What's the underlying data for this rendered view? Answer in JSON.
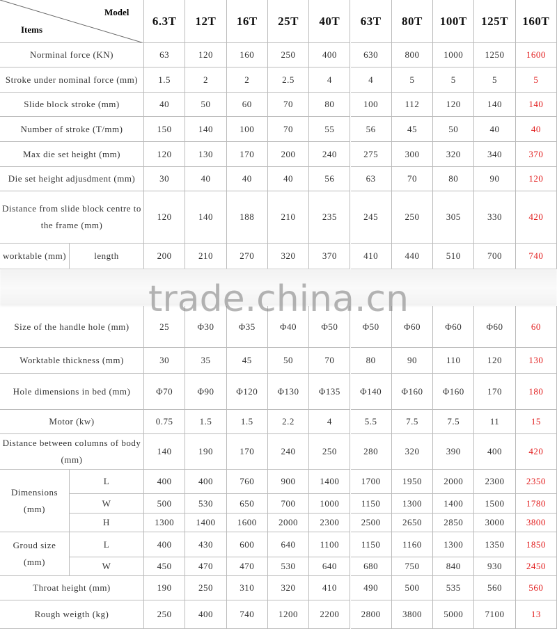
{
  "header": {
    "model": "Model",
    "items": "Items",
    "models": [
      "6.3T",
      "12T",
      "16T",
      "25T",
      "40T",
      "63T",
      "80T",
      "100T",
      "125T",
      "160T"
    ]
  },
  "rows": [
    {
      "label": "Norminal force (KN)",
      "values": [
        63,
        120,
        160,
        250,
        400,
        630,
        800,
        1000,
        1250,
        1600
      ]
    },
    {
      "label": "Stroke under nominal force (mm)",
      "values": [
        1.5,
        2,
        2,
        2.5,
        4,
        4,
        5,
        5,
        5,
        5
      ]
    },
    {
      "label": "Slide block stroke (mm)",
      "values": [
        40,
        50,
        60,
        70,
        80,
        100,
        112,
        120,
        140,
        140
      ]
    },
    {
      "label": "Number of stroke (T/mm)",
      "values": [
        150,
        140,
        100,
        70,
        55,
        56,
        45,
        50,
        40,
        40
      ]
    },
    {
      "label": "Max die set height (mm)",
      "values": [
        120,
        130,
        170,
        200,
        240,
        275,
        300,
        320,
        340,
        370
      ]
    },
    {
      "label": "Die set height adjusdment (mm)",
      "values": [
        30,
        40,
        40,
        40,
        56,
        63,
        70,
        80,
        90,
        120
      ]
    },
    {
      "label": "Distance from slide block centre to the frame (mm)",
      "values": [
        120,
        140,
        188,
        210,
        235,
        245,
        250,
        305,
        330,
        420
      ]
    },
    {
      "label": "worktable (mm)",
      "sub": [
        {
          "label": "length",
          "values": [
            200,
            210,
            270,
            320,
            370,
            410,
            440,
            510,
            700,
            740
          ]
        }
      ]
    },
    {
      "label": "Size of the handle hole (mm)",
      "values": [
        25,
        "Φ30",
        "Φ35",
        "Φ40",
        "Φ50",
        "Φ50",
        "Φ60",
        "Φ60",
        "Φ60",
        60
      ]
    },
    {
      "label": "Worktable thickness (mm)",
      "values": [
        30,
        35,
        45,
        50,
        70,
        80,
        90,
        110,
        120,
        130
      ]
    },
    {
      "label": "Hole dimensions in bed (mm)",
      "values": [
        "Φ70",
        "Φ90",
        "Φ120",
        "Φ130",
        "Φ135",
        "Φ140",
        "Φ160",
        "Φ160",
        170,
        180
      ]
    },
    {
      "label": "Motor (kw)",
      "values": [
        0.75,
        1.5,
        1.5,
        2.2,
        4,
        5.5,
        7.5,
        7.5,
        11,
        15
      ]
    },
    {
      "label": "Distance between columns of body (mm)",
      "values": [
        140,
        190,
        170,
        240,
        250,
        280,
        320,
        390,
        400,
        420
      ]
    },
    {
      "label": "Dimensions (mm)",
      "sub": [
        {
          "label": "L",
          "values": [
            400,
            400,
            760,
            900,
            1400,
            1700,
            1950,
            2000,
            2300,
            2350
          ]
        },
        {
          "label": "W",
          "values": [
            500,
            530,
            650,
            700,
            1000,
            1150,
            1300,
            1400,
            1500,
            1780
          ]
        },
        {
          "label": "H",
          "values": [
            1300,
            1400,
            1600,
            2000,
            2300,
            2500,
            2650,
            2850,
            3000,
            3800
          ]
        }
      ]
    },
    {
      "label": "Groud size (mm)",
      "sub": [
        {
          "label": "L",
          "values": [
            400,
            430,
            600,
            640,
            1100,
            1150,
            1160,
            1300,
            1350,
            1850
          ]
        },
        {
          "label": "W",
          "values": [
            450,
            470,
            470,
            530,
            640,
            680,
            750,
            840,
            930,
            2450
          ]
        }
      ]
    },
    {
      "label": "Throat height (mm)",
      "values": [
        190,
        250,
        310,
        320,
        410,
        490,
        500,
        535,
        560,
        560
      ]
    },
    {
      "label": "Rough weigth (kg)",
      "values": [
        250,
        400,
        740,
        1200,
        2200,
        2800,
        3800,
        5000,
        7100,
        13
      ]
    }
  ],
  "watermark": "trade.china.cn"
}
